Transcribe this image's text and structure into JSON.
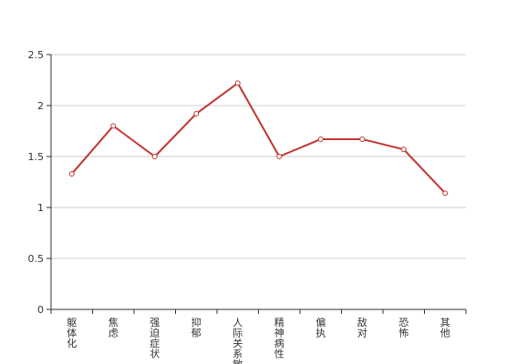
{
  "chart_data": {
    "type": "line",
    "title": "",
    "xlabel": "",
    "ylabel": "",
    "categories": [
      "躯体化",
      "焦虑",
      "强迫症状",
      "抑郁",
      "人际关系敏感",
      "精神病性",
      "偏执",
      "敌对",
      "恐怖",
      "其他"
    ],
    "series": [
      {
        "values": [
          1.33,
          1.8,
          1.5,
          1.92,
          2.22,
          1.5,
          1.67,
          1.67,
          1.57,
          1.14
        ]
      }
    ],
    "ylim": [
      0,
      2.5
    ],
    "yticks": [
      0,
      0.5,
      1,
      1.5,
      2,
      2.5
    ],
    "grid": true,
    "legend": "none",
    "colors": {
      "line": "#c23531",
      "grid": "#cccccc",
      "axis": "#333333"
    }
  }
}
